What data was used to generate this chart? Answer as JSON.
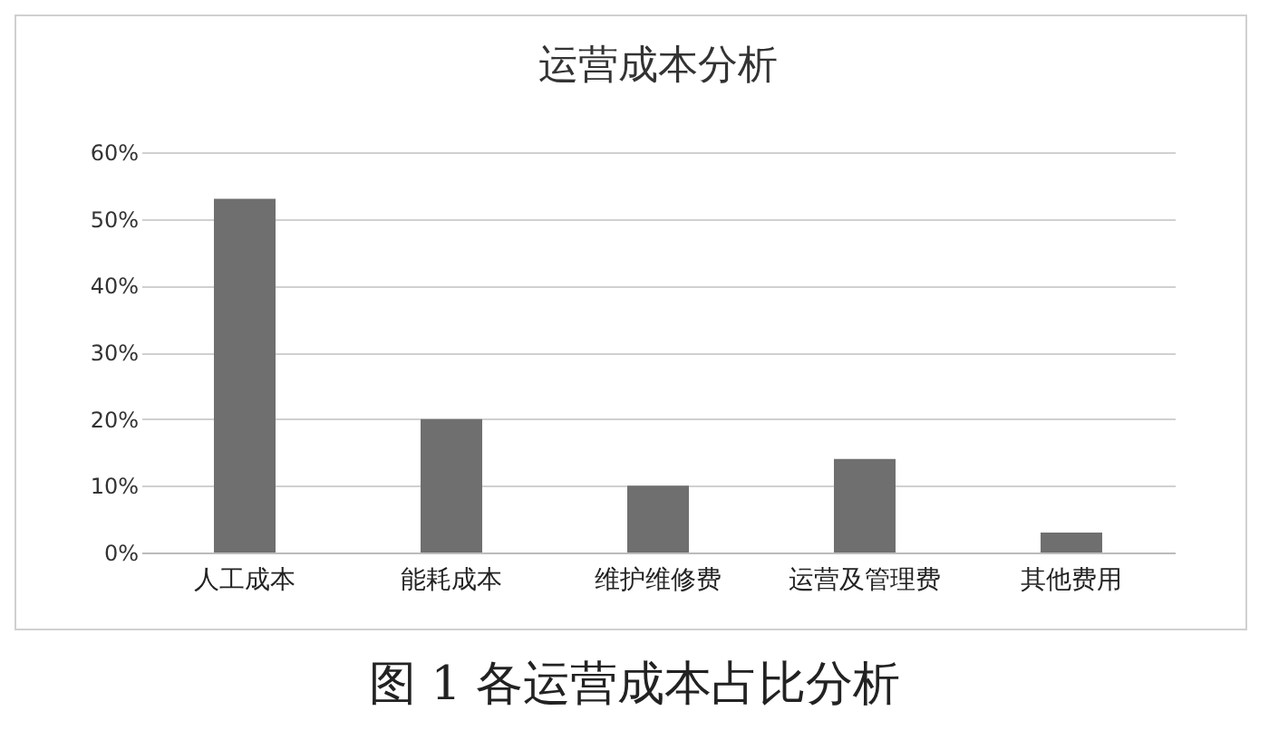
{
  "chart_data": {
    "type": "bar",
    "title": "运营成本分析",
    "categories": [
      "人工成本",
      "能耗成本",
      "维护维修费",
      "运营及管理费",
      "其他费用"
    ],
    "values": [
      53,
      20,
      10,
      14,
      3
    ],
    "color": "#6f6f6f",
    "ylim": [
      0,
      60
    ],
    "yticks": [
      {
        "value": 0,
        "label": "0%"
      },
      {
        "value": 10,
        "label": "10%"
      },
      {
        "value": 20,
        "label": "20%"
      },
      {
        "value": 30,
        "label": "30%"
      },
      {
        "value": 40,
        "label": "40%"
      },
      {
        "value": 50,
        "label": "50%"
      },
      {
        "value": 60,
        "label": "60%"
      }
    ],
    "grid": "y",
    "annotations": [
      "图 1 各运营成本占比分析"
    ]
  }
}
